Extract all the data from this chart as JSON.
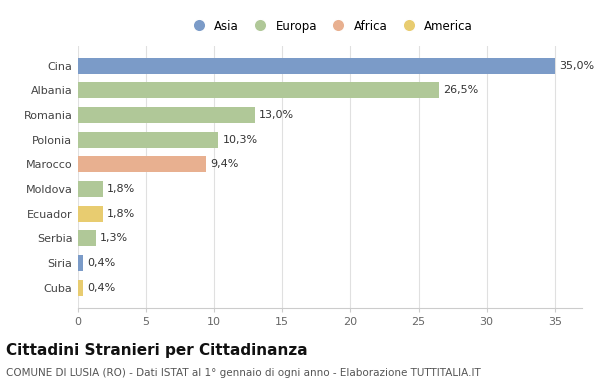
{
  "countries": [
    "Cina",
    "Albania",
    "Romania",
    "Polonia",
    "Marocco",
    "Moldova",
    "Ecuador",
    "Serbia",
    "Siria",
    "Cuba"
  ],
  "values": [
    35.0,
    26.5,
    13.0,
    10.3,
    9.4,
    1.8,
    1.8,
    1.3,
    0.4,
    0.4
  ],
  "labels": [
    "35,0%",
    "26,5%",
    "13,0%",
    "10,3%",
    "9,4%",
    "1,8%",
    "1,8%",
    "1,3%",
    "0,4%",
    "0,4%"
  ],
  "colors": [
    "#7b9bc8",
    "#b0c898",
    "#b0c898",
    "#b0c898",
    "#e8b090",
    "#b0c898",
    "#e8cc70",
    "#b0c898",
    "#7b9bc8",
    "#e8cc70"
  ],
  "legend_labels": [
    "Asia",
    "Europa",
    "Africa",
    "America"
  ],
  "legend_colors": [
    "#7b9bc8",
    "#b0c898",
    "#e8b090",
    "#e8cc70"
  ],
  "xlim": [
    0,
    37
  ],
  "xticks": [
    0,
    5,
    10,
    15,
    20,
    25,
    30,
    35
  ],
  "title": "Cittadini Stranieri per Cittadinanza",
  "subtitle": "COMUNE DI LUSIA (RO) - Dati ISTAT al 1° gennaio di ogni anno - Elaborazione TUTTITALIA.IT",
  "bg_color": "#ffffff",
  "title_fontsize": 11,
  "subtitle_fontsize": 7.5,
  "bar_height": 0.65,
  "label_fontsize": 8,
  "ytick_fontsize": 8,
  "xtick_fontsize": 8,
  "legend_fontsize": 8.5
}
